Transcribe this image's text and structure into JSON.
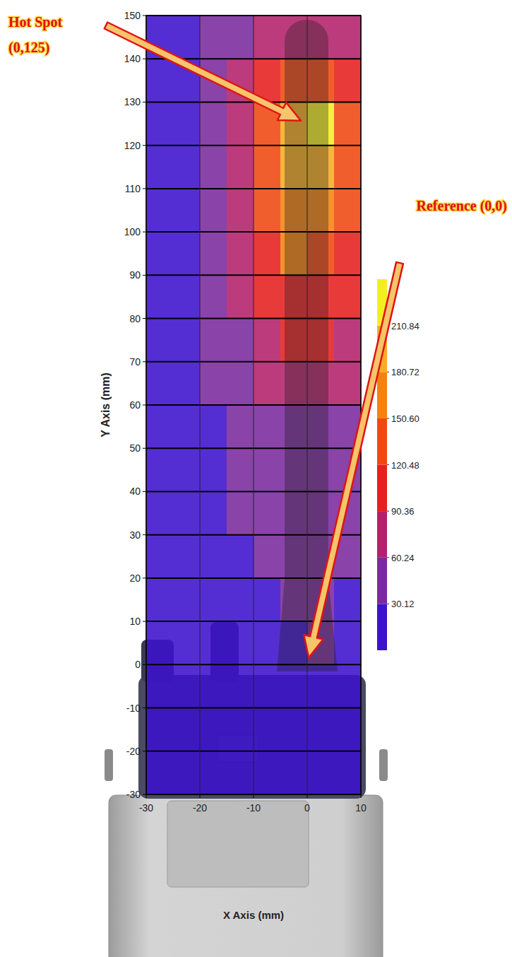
{
  "chart_data": {
    "type": "heatmap",
    "xlabel": "X Axis (mm)",
    "ylabel": "Y Axis (mm)",
    "xlim": [
      -30,
      10
    ],
    "ylim": [
      -30,
      150
    ],
    "xticks": [
      -30,
      -20,
      -10,
      0,
      10
    ],
    "yticks": [
      -30,
      -20,
      -10,
      0,
      10,
      20,
      30,
      40,
      50,
      60,
      70,
      80,
      90,
      100,
      110,
      120,
      130,
      140,
      150
    ],
    "grid": true,
    "x": [
      -27.5,
      -22.5,
      -17.5,
      -12.5,
      -7.5,
      -2.5,
      2.5,
      7.5
    ],
    "y": [
      145,
      135,
      125,
      115,
      105,
      95,
      85,
      75,
      65,
      55,
      45,
      35,
      25,
      15,
      5,
      -5,
      -15,
      -25
    ],
    "cells": [
      [
        10,
        20,
        35,
        50,
        65,
        80,
        85,
        70
      ],
      [
        12,
        25,
        45,
        70,
        100,
        140,
        150,
        110
      ],
      [
        15,
        30,
        50,
        80,
        130,
        200,
        215,
        140
      ],
      [
        15,
        30,
        55,
        85,
        135,
        190,
        200,
        140
      ],
      [
        15,
        30,
        55,
        85,
        125,
        170,
        175,
        130
      ],
      [
        15,
        30,
        50,
        80,
        115,
        155,
        150,
        120
      ],
      [
        15,
        28,
        45,
        70,
        100,
        120,
        115,
        100
      ],
      [
        12,
        25,
        40,
        60,
        80,
        95,
        95,
        80
      ],
      [
        10,
        22,
        35,
        50,
        65,
        75,
        75,
        65
      ],
      [
        10,
        20,
        30,
        40,
        50,
        55,
        55,
        50
      ],
      [
        8,
        18,
        28,
        35,
        40,
        45,
        45,
        40
      ],
      [
        8,
        15,
        25,
        32,
        35,
        38,
        38,
        35
      ],
      [
        6,
        12,
        22,
        28,
        32,
        35,
        35,
        32
      ],
      [
        5,
        10,
        18,
        24,
        28,
        32,
        35,
        30
      ],
      [
        5,
        8,
        14,
        20,
        25,
        30,
        35,
        28
      ],
      [
        5,
        6,
        10,
        14,
        18,
        22,
        28,
        22
      ],
      [
        4,
        5,
        8,
        10,
        12,
        14,
        16,
        14
      ],
      [
        3,
        4,
        5,
        6,
        8,
        10,
        12,
        10
      ]
    ],
    "color_range": [
      0,
      241
    ],
    "color_ticks": [
      30.12,
      60.24,
      90.36,
      120.48,
      {
        "value": 150.6,
        "label": "150.60"
      },
      180.72,
      210.84
    ],
    "colors": [
      "#3d12cc",
      "#7a2a9e",
      "#b3206c",
      "#e61f1f",
      "#f04812",
      "#f5820f",
      "#f8ad22",
      "#f2ee24"
    ],
    "annotations": [
      {
        "text": [
          "Hot Spot",
          "(0,125)"
        ],
        "x": 0,
        "y": 125
      },
      {
        "text": [
          "Reference (0,0)"
        ],
        "x": 0,
        "y": 0
      }
    ]
  }
}
